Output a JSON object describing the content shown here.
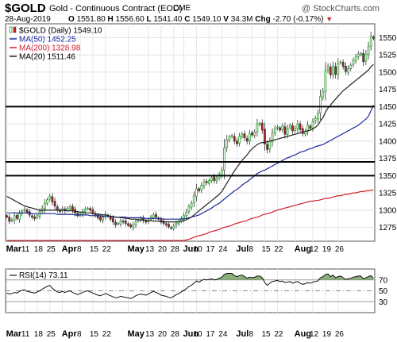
{
  "header": {
    "symbol": "$GOLD",
    "name": "Gold - Continuous Contract (EOD)",
    "exchange": "CME",
    "watermark": "@ StockCharts.com",
    "date": "28-Aug-2019",
    "open_label": "O",
    "open": "1551.80",
    "high_label": "H",
    "high": "1556.60",
    "low_label": "L",
    "low": "1541.40",
    "close_label": "C",
    "close": "1549.10",
    "volume_label": "V",
    "volume": "34.3M",
    "change_label": "Chg",
    "change": "-2.70 (-0.17%)"
  },
  "colors": {
    "up": "#2e9e2e",
    "down": "#d02020",
    "ma50": "#1a2a9c",
    "ma200": "#d0202c",
    "ma20": "#222222",
    "rsi_fill": "#6e9a5a"
  },
  "chart_data": [
    {
      "type": "candlestick",
      "title": "$GOLD (Daily) 1549.10",
      "ylim": [
        1255,
        1570
      ],
      "yticks": [
        1275,
        1300,
        1325,
        1350,
        1375,
        1400,
        1425,
        1450,
        1475,
        1500,
        1525,
        1550
      ],
      "ytick_labels": [
        "1275",
        "1300",
        "1325",
        "1350",
        "1375",
        "1400",
        "1425",
        "1450",
        "1475",
        "1500",
        "1525",
        "1550"
      ],
      "horizontal_lines": [
        1450,
        1370,
        1350
      ],
      "legend": [
        {
          "key": "price",
          "label": "$GOLD (Daily) 1549.10"
        },
        {
          "key": "ma50",
          "label": "MA(50) 1452.25"
        },
        {
          "key": "ma200",
          "label": "MA(200) 1328.98"
        },
        {
          "key": "ma20",
          "label": "MA(20) 1511.46"
        }
      ],
      "close": [
        1290,
        1284,
        1286,
        1292,
        1288,
        1295,
        1298,
        1301,
        1297,
        1293,
        1290,
        1288,
        1292,
        1298,
        1303,
        1310,
        1315,
        1320,
        1312,
        1306,
        1300,
        1298,
        1302,
        1299,
        1303,
        1305,
        1300,
        1296,
        1292,
        1295,
        1298,
        1301,
        1303,
        1300,
        1296,
        1293,
        1289,
        1286,
        1290,
        1294,
        1291,
        1287,
        1283,
        1279,
        1281,
        1284,
        1283,
        1281,
        1278,
        1276,
        1279,
        1283,
        1286,
        1288,
        1285,
        1283,
        1286,
        1290,
        1293,
        1290,
        1287,
        1283,
        1281,
        1279,
        1276,
        1274,
        1277,
        1281,
        1284,
        1288,
        1292,
        1297,
        1305,
        1310,
        1321,
        1331,
        1328,
        1336,
        1341,
        1340,
        1343,
        1347,
        1343,
        1346,
        1352,
        1358,
        1390,
        1402,
        1406,
        1408,
        1400,
        1396,
        1407,
        1410,
        1405,
        1400,
        1411,
        1409,
        1413,
        1425,
        1426,
        1416,
        1396,
        1388,
        1400,
        1412,
        1418,
        1420,
        1416,
        1422,
        1410,
        1418,
        1423,
        1415,
        1419,
        1425,
        1417,
        1411,
        1414,
        1423,
        1419,
        1428,
        1433,
        1440,
        1465,
        1472,
        1502,
        1508,
        1496,
        1509,
        1497,
        1512,
        1515,
        1508,
        1501,
        1505,
        1510,
        1517,
        1522,
        1526,
        1527,
        1515,
        1526,
        1537,
        1552,
        1549
      ],
      "ma50": [
        1296,
        1296,
        1296,
        1296,
        1296,
        1296,
        1296,
        1296,
        1296,
        1296,
        1295,
        1295,
        1295,
        1295,
        1295,
        1295,
        1295,
        1295,
        1295,
        1295,
        1294,
        1294,
        1294,
        1294,
        1294,
        1294,
        1294,
        1293,
        1293,
        1293,
        1293,
        1293,
        1293,
        1292,
        1292,
        1292,
        1292,
        1292,
        1291,
        1291,
        1291,
        1291,
        1290,
        1290,
        1290,
        1290,
        1290,
        1290,
        1289,
        1289,
        1289,
        1289,
        1289,
        1289,
        1289,
        1288,
        1288,
        1288,
        1288,
        1288,
        1288,
        1288,
        1287,
        1287,
        1287,
        1287,
        1287,
        1287,
        1287,
        1287,
        1288,
        1288,
        1289,
        1290,
        1291,
        1292,
        1293,
        1295,
        1297,
        1299,
        1301,
        1303,
        1306,
        1308,
        1310,
        1313,
        1316,
        1319,
        1322,
        1325,
        1328,
        1330,
        1333,
        1336,
        1339,
        1341,
        1344,
        1347,
        1350,
        1353,
        1355,
        1357,
        1358,
        1360,
        1362,
        1364,
        1366,
        1368,
        1370,
        1372,
        1374,
        1376,
        1377,
        1379,
        1380,
        1382,
        1384,
        1385,
        1386,
        1388,
        1389,
        1390,
        1392,
        1393,
        1394,
        1395,
        1397,
        1399,
        1401,
        1403,
        1405,
        1407,
        1409,
        1411,
        1413,
        1415,
        1417,
        1419,
        1421,
        1423,
        1426,
        1429,
        1432,
        1436,
        1444,
        1452
      ],
      "ma200": [
        1256,
        1256,
        1256,
        1256,
        1256,
        1256,
        1256,
        1256,
        1256,
        1256,
        1256,
        1256,
        1256,
        1256,
        1256,
        1256,
        1256,
        1256,
        1256,
        1256,
        1256,
        1256,
        1256,
        1256,
        1256,
        1256,
        1256,
        1256,
        1256,
        1256,
        1256,
        1256,
        1256,
        1256,
        1256,
        1256,
        1256,
        1256,
        1256,
        1256,
        1256,
        1256,
        1256,
        1256,
        1256,
        1256,
        1256,
        1256,
        1256,
        1256,
        1256,
        1256,
        1256,
        1256,
        1256,
        1256,
        1256,
        1256,
        1256,
        1256,
        1256,
        1256,
        1256,
        1256,
        1256,
        1256,
        1256,
        1256,
        1256,
        1256,
        1256,
        1257,
        1258,
        1259,
        1261,
        1262,
        1263,
        1264,
        1265,
        1266,
        1268,
        1269,
        1270,
        1271,
        1272,
        1274,
        1275,
        1276,
        1277,
        1278,
        1280,
        1281,
        1282,
        1283,
        1284,
        1285,
        1287,
        1288,
        1289,
        1290,
        1291,
        1293,
        1294,
        1295,
        1296,
        1297,
        1299,
        1300,
        1301,
        1302,
        1303,
        1304,
        1305,
        1306,
        1307,
        1308,
        1309,
        1310,
        1311,
        1312,
        1313,
        1313,
        1314,
        1314,
        1315,
        1316,
        1317,
        1317,
        1318,
        1319,
        1320,
        1321,
        1321,
        1322,
        1323,
        1323,
        1324,
        1325,
        1325,
        1326,
        1327,
        1327,
        1328,
        1328,
        1329,
        1329
      ],
      "ma20": [
        1320,
        1318,
        1316,
        1314,
        1312,
        1310,
        1308,
        1306,
        1305,
        1304,
        1303,
        1302,
        1301,
        1300,
        1300,
        1300,
        1300,
        1300,
        1300,
        1300,
        1300,
        1300,
        1300,
        1300,
        1299,
        1299,
        1299,
        1298,
        1298,
        1297,
        1297,
        1296,
        1296,
        1296,
        1295,
        1295,
        1294,
        1294,
        1293,
        1293,
        1292,
        1291,
        1291,
        1290,
        1290,
        1289,
        1289,
        1288,
        1288,
        1287,
        1287,
        1287,
        1286,
        1286,
        1286,
        1285,
        1285,
        1285,
        1284,
        1284,
        1284,
        1283,
        1283,
        1283,
        1283,
        1283,
        1283,
        1283,
        1283,
        1284,
        1285,
        1286,
        1288,
        1290,
        1293,
        1296,
        1299,
        1302,
        1305,
        1308,
        1311,
        1314,
        1317,
        1320,
        1323,
        1327,
        1333,
        1339,
        1345,
        1351,
        1357,
        1362,
        1367,
        1372,
        1376,
        1380,
        1385,
        1389,
        1392,
        1395,
        1397,
        1398,
        1398,
        1399,
        1400,
        1401,
        1402,
        1403,
        1404,
        1405,
        1406,
        1407,
        1408,
        1409,
        1410,
        1411,
        1412,
        1413,
        1414,
        1415,
        1416,
        1418,
        1420,
        1423,
        1429,
        1434,
        1442,
        1448,
        1452,
        1457,
        1461,
        1465,
        1469,
        1473,
        1476,
        1479,
        1482,
        1485,
        1488,
        1491,
        1494,
        1497,
        1500,
        1503,
        1508,
        1511
      ]
    },
    {
      "type": "line",
      "title": "RSI(14) 73.11",
      "ylim": [
        10,
        90
      ],
      "yticks": [
        30,
        50,
        70
      ],
      "ytick_labels": [
        "30",
        "50",
        "70"
      ],
      "reference_levels": [
        70,
        50,
        30
      ],
      "values": [
        46,
        44,
        45,
        47,
        46,
        49,
        51,
        52,
        49,
        48,
        47,
        46,
        48,
        50,
        53,
        56,
        58,
        60,
        55,
        51,
        48,
        47,
        49,
        47,
        49,
        50,
        47,
        45,
        43,
        45,
        47,
        49,
        50,
        48,
        46,
        44,
        42,
        41,
        43,
        45,
        43,
        41,
        39,
        37,
        38,
        40,
        39,
        38,
        37,
        36,
        38,
        41,
        43,
        44,
        43,
        42,
        44,
        47,
        49,
        47,
        45,
        42,
        41,
        40,
        38,
        37,
        40,
        43,
        45,
        48,
        51,
        54,
        58,
        60,
        64,
        68,
        66,
        69,
        71,
        70,
        71,
        72,
        70,
        71,
        73,
        75,
        80,
        82,
        82,
        82,
        78,
        76,
        78,
        79,
        76,
        73,
        75,
        74,
        75,
        77,
        77,
        74,
        65,
        60,
        64,
        67,
        68,
        69,
        67,
        68,
        65,
        66,
        67,
        64,
        66,
        67,
        64,
        62,
        63,
        65,
        64,
        66,
        67,
        68,
        74,
        76,
        80,
        81,
        76,
        79,
        74,
        76,
        77,
        74,
        71,
        72,
        73,
        75,
        76,
        77,
        77,
        72,
        74,
        76,
        78,
        73
      ]
    }
  ],
  "xaxis": {
    "labels": [
      {
        "text": "Mar",
        "i": 0,
        "month": true
      },
      {
        "text": "11",
        "i": 7
      },
      {
        "text": "18",
        "i": 12
      },
      {
        "text": "25",
        "i": 17
      },
      {
        "text": "Apr",
        "i": 22,
        "month": true
      },
      {
        "text": "8",
        "i": 29
      },
      {
        "text": "15",
        "i": 34
      },
      {
        "text": "22",
        "i": 39
      },
      {
        "text": "May",
        "i": 48,
        "month": true
      },
      {
        "text": "13",
        "i": 56
      },
      {
        "text": "20",
        "i": 61
      },
      {
        "text": "28",
        "i": 66
      },
      {
        "text": "Jun",
        "i": 70,
        "month": true
      },
      {
        "text": "10",
        "i": 75
      },
      {
        "text": "17",
        "i": 80
      },
      {
        "text": "24",
        "i": 85
      },
      {
        "text": "Jul",
        "i": 91,
        "month": true
      },
      {
        "text": "8",
        "i": 97
      },
      {
        "text": "15",
        "i": 102
      },
      {
        "text": "22",
        "i": 107
      },
      {
        "text": "Aug",
        "i": 114,
        "month": true
      },
      {
        "text": "12",
        "i": 121
      },
      {
        "text": "19",
        "i": 126
      },
      {
        "text": "26",
        "i": 131
      }
    ]
  }
}
